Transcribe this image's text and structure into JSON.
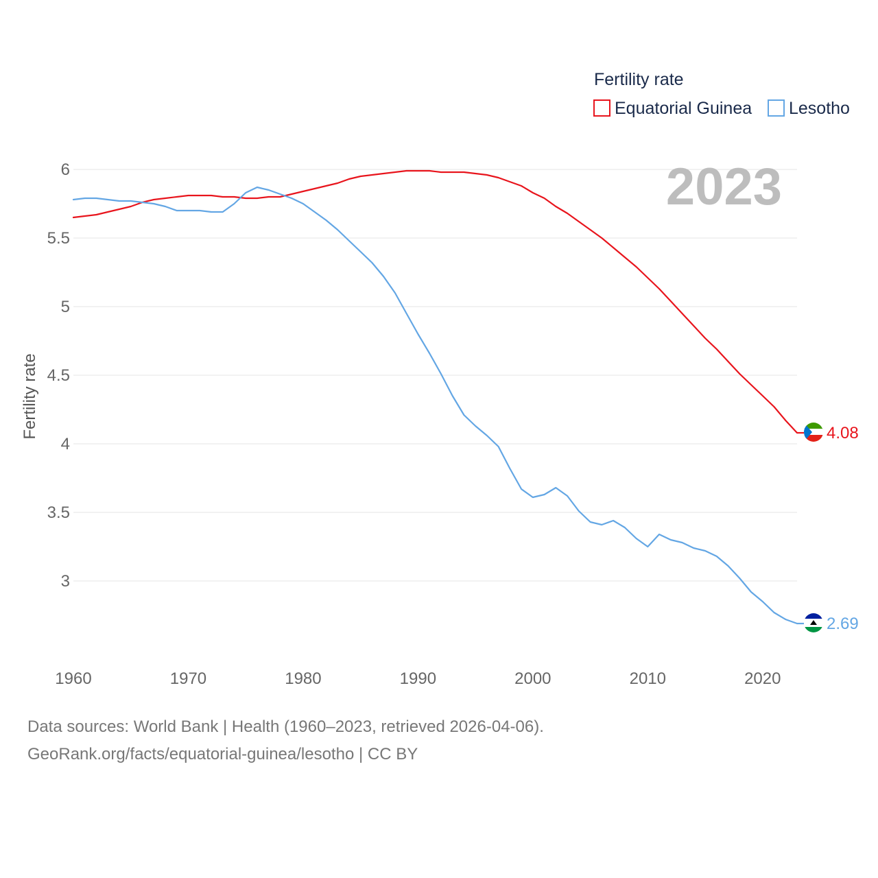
{
  "legend": {
    "title": "Fertility rate",
    "items": [
      {
        "label": "Equatorial Guinea",
        "color": "#e8141c"
      },
      {
        "label": "Lesotho",
        "color": "#63a6e4"
      }
    ]
  },
  "year_label": "2023",
  "footer": {
    "line1": "Data sources: World Bank | Health (1960–2023, retrieved 2026-04-06).",
    "line2": "GeoRank.org/facts/equatorial-guinea/lesotho | CC BY"
  },
  "chart_data": {
    "type": "line",
    "title": "Fertility rate",
    "xlabel": "",
    "ylabel": "Fertility rate",
    "xlim": [
      1960,
      2023
    ],
    "ylim": [
      2.5,
      6.1
    ],
    "x_ticks": [
      1960,
      1970,
      1980,
      1990,
      2000,
      2010,
      2020
    ],
    "y_ticks": [
      3,
      3.5,
      4,
      4.5,
      5,
      5.5,
      6
    ],
    "y_tick_labels": [
      "3",
      "3.5",
      "4",
      "4.5",
      "5",
      "5.5",
      "6"
    ],
    "x_tick_labels": [
      "1960",
      "1970",
      "1980",
      "1990",
      "2000",
      "2010",
      "2020"
    ],
    "grid": true,
    "legend_position": "top-right",
    "x": [
      1960,
      1961,
      1962,
      1963,
      1964,
      1965,
      1966,
      1967,
      1968,
      1969,
      1970,
      1971,
      1972,
      1973,
      1974,
      1975,
      1976,
      1977,
      1978,
      1979,
      1980,
      1981,
      1982,
      1983,
      1984,
      1985,
      1986,
      1987,
      1988,
      1989,
      1990,
      1991,
      1992,
      1993,
      1994,
      1995,
      1996,
      1997,
      1998,
      1999,
      2000,
      2001,
      2002,
      2003,
      2004,
      2005,
      2006,
      2007,
      2008,
      2009,
      2010,
      2011,
      2012,
      2013,
      2014,
      2015,
      2016,
      2017,
      2018,
      2019,
      2020,
      2021,
      2022,
      2023
    ],
    "series": [
      {
        "name": "Equatorial Guinea",
        "color": "#e8141c",
        "end_label": "4.08",
        "values": [
          5.65,
          5.66,
          5.67,
          5.69,
          5.71,
          5.73,
          5.76,
          5.78,
          5.79,
          5.8,
          5.81,
          5.81,
          5.81,
          5.8,
          5.8,
          5.79,
          5.79,
          5.8,
          5.8,
          5.82,
          5.84,
          5.86,
          5.88,
          5.9,
          5.93,
          5.95,
          5.96,
          5.97,
          5.98,
          5.99,
          5.99,
          5.99,
          5.98,
          5.98,
          5.98,
          5.97,
          5.96,
          5.94,
          5.91,
          5.88,
          5.83,
          5.79,
          5.73,
          5.68,
          5.62,
          5.56,
          5.5,
          5.43,
          5.36,
          5.29,
          5.21,
          5.13,
          5.04,
          4.95,
          4.86,
          4.77,
          4.69,
          4.6,
          4.51,
          4.43,
          4.35,
          4.27,
          4.17,
          4.08
        ]
      },
      {
        "name": "Lesotho",
        "color": "#63a6e4",
        "end_label": "2.69",
        "values": [
          5.78,
          5.79,
          5.79,
          5.78,
          5.77,
          5.77,
          5.76,
          5.75,
          5.73,
          5.7,
          5.7,
          5.7,
          5.69,
          5.69,
          5.75,
          5.83,
          5.87,
          5.85,
          5.82,
          5.79,
          5.75,
          5.69,
          5.63,
          5.56,
          5.48,
          5.4,
          5.32,
          5.22,
          5.1,
          4.95,
          4.8,
          4.66,
          4.51,
          4.35,
          4.21,
          4.13,
          4.06,
          3.98,
          3.82,
          3.67,
          3.61,
          3.63,
          3.68,
          3.62,
          3.51,
          3.43,
          3.41,
          3.44,
          3.39,
          3.31,
          3.25,
          3.34,
          3.3,
          3.28,
          3.24,
          3.22,
          3.18,
          3.11,
          3.02,
          2.92,
          2.85,
          2.77,
          2.72,
          2.69
        ]
      }
    ]
  }
}
